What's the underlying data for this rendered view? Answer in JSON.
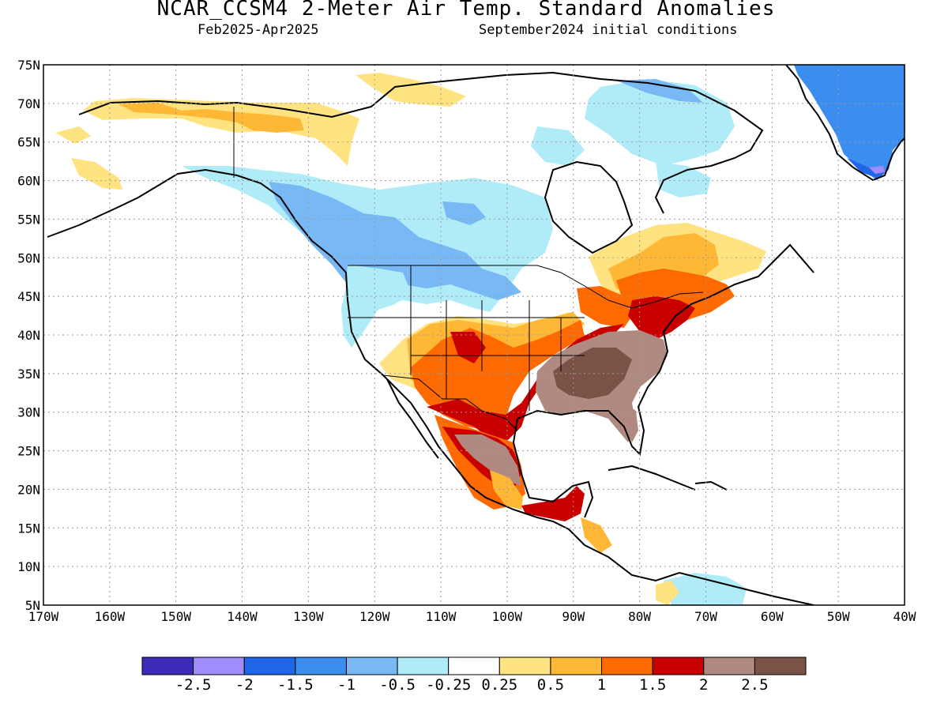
{
  "header": {
    "title": "NCAR_CCSM4 2-Meter Air Temp. Standard Anomalies",
    "period": "Feb2025-Apr2025",
    "init": "September2024 initial conditions"
  },
  "map": {
    "lat_labels": [
      "75N",
      "70N",
      "65N",
      "60N",
      "55N",
      "50N",
      "45N",
      "40N",
      "35N",
      "30N",
      "25N",
      "20N",
      "15N",
      "10N",
      "5N"
    ],
    "lat_values": [
      75,
      70,
      65,
      60,
      55,
      50,
      45,
      40,
      35,
      30,
      25,
      20,
      15,
      10,
      5
    ],
    "lon_labels": [
      "170W",
      "160W",
      "150W",
      "140W",
      "130W",
      "120W",
      "110W",
      "100W",
      "90W",
      "80W",
      "70W",
      "60W",
      "50W",
      "40W"
    ],
    "lon_values": [
      -170,
      -160,
      -150,
      -140,
      -130,
      -120,
      -110,
      -100,
      -90,
      -80,
      -70,
      -60,
      -50,
      -40
    ],
    "lon_range": [
      -170,
      -40
    ],
    "lat_range": [
      5,
      75
    ],
    "grid": "dotted",
    "land_color": "#ffffff",
    "coastline_color": "#000000"
  },
  "colorbar": {
    "colors": [
      "#3b2bb8",
      "#a08cff",
      "#1f67e8",
      "#3c8df0",
      "#78b8f5",
      "#b0ecf8",
      "#ffffff",
      "#ffe380",
      "#ffb835",
      "#ff6a00",
      "#c80000",
      "#b08a80",
      "#7a5246"
    ],
    "labels": [
      "-2.5",
      "-2",
      "-1.5",
      "-1",
      "-0.5",
      "-0.25",
      "0.25",
      "0.5",
      "1",
      "1.5",
      "2",
      "2.5"
    ]
  }
}
